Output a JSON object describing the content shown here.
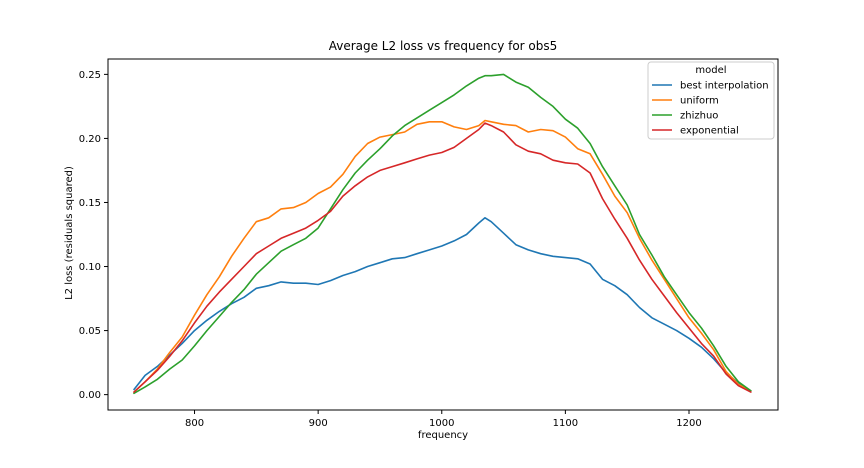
{
  "chart_data": {
    "type": "line",
    "title": "Average L2 loss vs frequency for obs5",
    "xlabel": "frequency",
    "ylabel": "L2 loss (residuals squared)",
    "xlim": [
      730,
      1272
    ],
    "ylim": [
      -0.012,
      0.262
    ],
    "xticks": [
      800,
      900,
      1000,
      1100,
      1200
    ],
    "yticks": [
      0.0,
      0.05,
      0.1,
      0.15,
      0.2,
      0.25
    ],
    "ytick_labels": [
      "0.00",
      "0.05",
      "0.10",
      "0.15",
      "0.20",
      "0.25"
    ],
    "xtick_labels": [
      "800",
      "900",
      "1000",
      "1100",
      "1200"
    ],
    "grid": false,
    "legend": {
      "title": "model",
      "placement": "top-right"
    },
    "series": [
      {
        "name": "best interpolation",
        "color": "#1f77b4",
        "x": [
          751,
          760,
          770,
          780,
          790,
          800,
          810,
          820,
          830,
          840,
          850,
          860,
          870,
          880,
          890,
          900,
          910,
          920,
          930,
          940,
          950,
          960,
          970,
          980,
          990,
          1000,
          1010,
          1020,
          1030,
          1035,
          1040,
          1050,
          1060,
          1070,
          1080,
          1090,
          1100,
          1110,
          1120,
          1130,
          1140,
          1150,
          1160,
          1170,
          1180,
          1190,
          1200,
          1210,
          1220,
          1230,
          1240,
          1250
        ],
        "y": [
          0.004,
          0.015,
          0.022,
          0.031,
          0.04,
          0.05,
          0.058,
          0.065,
          0.071,
          0.076,
          0.083,
          0.085,
          0.088,
          0.087,
          0.087,
          0.086,
          0.089,
          0.093,
          0.096,
          0.1,
          0.103,
          0.106,
          0.107,
          0.11,
          0.113,
          0.116,
          0.12,
          0.125,
          0.134,
          0.138,
          0.135,
          0.126,
          0.117,
          0.113,
          0.11,
          0.108,
          0.107,
          0.106,
          0.102,
          0.09,
          0.085,
          0.078,
          0.068,
          0.06,
          0.055,
          0.05,
          0.044,
          0.037,
          0.028,
          0.017,
          0.009,
          0.003
        ]
      },
      {
        "name": "uniform",
        "color": "#ff7f0e",
        "x": [
          751,
          760,
          770,
          780,
          790,
          800,
          810,
          820,
          830,
          840,
          850,
          860,
          870,
          880,
          890,
          900,
          910,
          920,
          930,
          940,
          950,
          960,
          970,
          980,
          990,
          1000,
          1010,
          1020,
          1030,
          1035,
          1040,
          1050,
          1060,
          1070,
          1080,
          1090,
          1100,
          1110,
          1120,
          1130,
          1140,
          1150,
          1160,
          1170,
          1180,
          1190,
          1200,
          1210,
          1220,
          1230,
          1240,
          1250
        ],
        "y": [
          0.002,
          0.01,
          0.02,
          0.033,
          0.045,
          0.062,
          0.078,
          0.092,
          0.108,
          0.122,
          0.135,
          0.138,
          0.145,
          0.146,
          0.15,
          0.157,
          0.162,
          0.172,
          0.186,
          0.196,
          0.201,
          0.203,
          0.205,
          0.211,
          0.213,
          0.213,
          0.209,
          0.207,
          0.21,
          0.214,
          0.213,
          0.211,
          0.21,
          0.205,
          0.207,
          0.206,
          0.201,
          0.192,
          0.188,
          0.172,
          0.155,
          0.142,
          0.122,
          0.105,
          0.09,
          0.075,
          0.06,
          0.048,
          0.035,
          0.018,
          0.008,
          0.003
        ]
      },
      {
        "name": "zhizhuo",
        "color": "#2ca02c",
        "x": [
          751,
          760,
          770,
          780,
          790,
          800,
          810,
          820,
          830,
          840,
          850,
          860,
          870,
          880,
          890,
          900,
          910,
          920,
          930,
          940,
          950,
          960,
          970,
          980,
          990,
          1000,
          1010,
          1020,
          1030,
          1035,
          1040,
          1050,
          1060,
          1070,
          1080,
          1090,
          1100,
          1110,
          1120,
          1130,
          1140,
          1150,
          1160,
          1170,
          1180,
          1190,
          1200,
          1210,
          1220,
          1230,
          1240,
          1250
        ],
        "y": [
          0.001,
          0.006,
          0.012,
          0.02,
          0.027,
          0.038,
          0.05,
          0.061,
          0.072,
          0.082,
          0.094,
          0.103,
          0.112,
          0.117,
          0.122,
          0.13,
          0.145,
          0.16,
          0.173,
          0.183,
          0.192,
          0.202,
          0.21,
          0.216,
          0.222,
          0.228,
          0.234,
          0.241,
          0.247,
          0.249,
          0.249,
          0.25,
          0.244,
          0.24,
          0.232,
          0.225,
          0.215,
          0.208,
          0.196,
          0.178,
          0.163,
          0.148,
          0.125,
          0.109,
          0.092,
          0.078,
          0.064,
          0.052,
          0.038,
          0.022,
          0.01,
          0.003
        ]
      },
      {
        "name": "exponential",
        "color": "#d62728",
        "x": [
          751,
          760,
          770,
          780,
          790,
          800,
          810,
          820,
          830,
          840,
          850,
          860,
          870,
          880,
          890,
          900,
          910,
          920,
          930,
          940,
          950,
          960,
          970,
          980,
          990,
          1000,
          1010,
          1020,
          1030,
          1035,
          1040,
          1050,
          1060,
          1070,
          1080,
          1090,
          1100,
          1110,
          1120,
          1130,
          1140,
          1150,
          1160,
          1170,
          1180,
          1190,
          1200,
          1210,
          1220,
          1230,
          1240,
          1250
        ],
        "y": [
          0.002,
          0.01,
          0.019,
          0.03,
          0.042,
          0.056,
          0.069,
          0.08,
          0.09,
          0.1,
          0.11,
          0.116,
          0.122,
          0.126,
          0.13,
          0.136,
          0.143,
          0.155,
          0.163,
          0.17,
          0.175,
          0.178,
          0.181,
          0.184,
          0.187,
          0.189,
          0.193,
          0.2,
          0.207,
          0.212,
          0.21,
          0.205,
          0.195,
          0.19,
          0.188,
          0.183,
          0.181,
          0.18,
          0.173,
          0.153,
          0.137,
          0.122,
          0.105,
          0.09,
          0.077,
          0.064,
          0.052,
          0.04,
          0.03,
          0.016,
          0.007,
          0.002
        ]
      }
    ]
  }
}
